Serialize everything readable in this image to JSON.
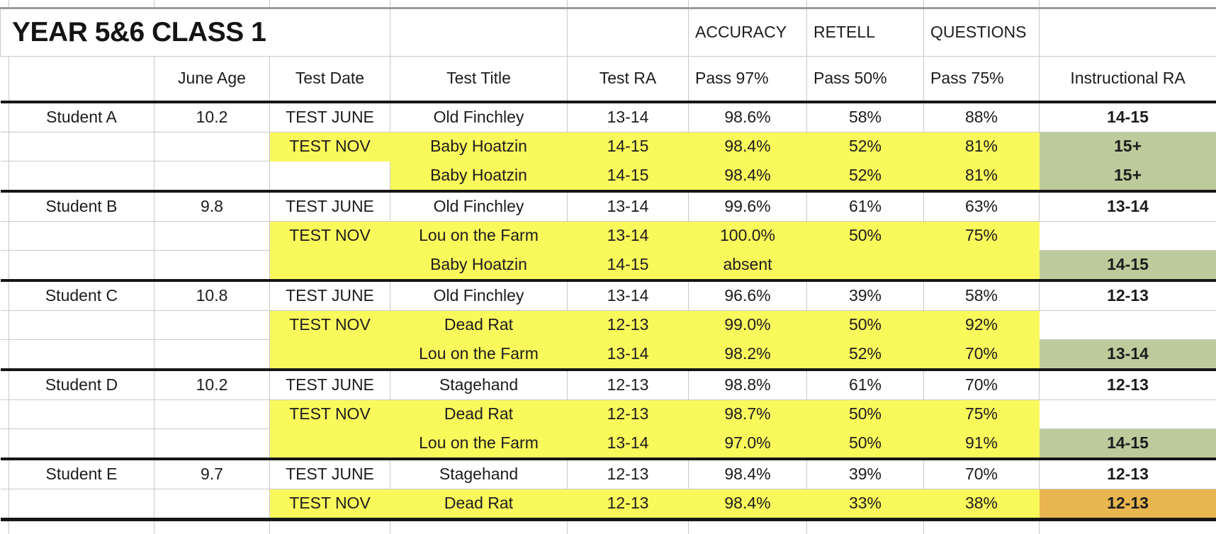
{
  "title": "YEAR 5&6 CLASS 1",
  "category_headers": {
    "accuracy": "ACCURACY",
    "retell": "RETELL",
    "questions": "QUESTIONS"
  },
  "column_headers": [
    "",
    "June Age",
    "Test Date",
    "Test Title",
    "Test RA",
    "Pass 97%",
    "Pass 50%",
    "Pass 75%",
    "Instructional RA"
  ],
  "colors": {
    "highlight_yellow": "#faf95c",
    "instructional_green": "#bdcb9c",
    "instructional_orange": "#e9b54f",
    "grid_line": "#c9c9c9",
    "divider_black": "#161616"
  },
  "rows": [
    {
      "student": "Student A",
      "june_age": "10.2",
      "test_date": "TEST JUNE",
      "test_title": "Old Finchley",
      "test_ra": "13-14",
      "pass97": "98.6%",
      "pass50": "58%",
      "pass75": "88%",
      "instructional_ra": "14-15",
      "row_highlight": "none",
      "instructional_ra_fill": "none",
      "group_start": true
    },
    {
      "student": "",
      "june_age": "",
      "test_date": "TEST NOV",
      "test_title": "Baby Hoatzin",
      "test_ra": "14-15",
      "pass97": "98.4%",
      "pass50": "52%",
      "pass75": "81%",
      "instructional_ra": "15+",
      "row_highlight": "from_test_date",
      "instructional_ra_fill": "green",
      "group_start": false
    },
    {
      "student": "",
      "june_age": "",
      "test_date": "",
      "test_title": "Baby Hoatzin",
      "test_ra": "14-15",
      "pass97": "98.4%",
      "pass50": "52%",
      "pass75": "81%",
      "instructional_ra": "15+",
      "row_highlight": "from_test_title",
      "instructional_ra_fill": "green",
      "group_start": false
    },
    {
      "student": "Student B",
      "june_age": "9.8",
      "test_date": "TEST JUNE",
      "test_title": "Old Finchley",
      "test_ra": "13-14",
      "pass97": "99.6%",
      "pass50": "61%",
      "pass75": "63%",
      "instructional_ra": "13-14",
      "row_highlight": "none",
      "instructional_ra_fill": "none",
      "group_start": true
    },
    {
      "student": "",
      "june_age": "",
      "test_date": "TEST NOV",
      "test_title": "Lou on the Farm",
      "test_ra": "13-14",
      "pass97": "100.0%",
      "pass50": "50%",
      "pass75": "75%",
      "instructional_ra": "",
      "row_highlight": "from_test_date",
      "instructional_ra_fill": "none",
      "group_start": false
    },
    {
      "student": "",
      "june_age": "",
      "test_date": "",
      "test_title": "Baby Hoatzin",
      "test_ra": "14-15",
      "pass97": "absent",
      "pass50": "",
      "pass75": "",
      "instructional_ra": "14-15",
      "row_highlight": "from_test_date",
      "instructional_ra_fill": "green",
      "group_start": false
    },
    {
      "student": "Student C",
      "june_age": "10.8",
      "test_date": "TEST JUNE",
      "test_title": "Old Finchley",
      "test_ra": "13-14",
      "pass97": "96.6%",
      "pass50": "39%",
      "pass75": "58%",
      "instructional_ra": "12-13",
      "row_highlight": "none",
      "instructional_ra_fill": "none",
      "group_start": true
    },
    {
      "student": "",
      "june_age": "",
      "test_date": "TEST NOV",
      "test_title": "Dead Rat",
      "test_ra": "12-13",
      "pass97": "99.0%",
      "pass50": "50%",
      "pass75": "92%",
      "instructional_ra": "",
      "row_highlight": "from_test_date",
      "instructional_ra_fill": "none",
      "group_start": false
    },
    {
      "student": "",
      "june_age": "",
      "test_date": "",
      "test_title": "Lou on the Farm",
      "test_ra": "13-14",
      "pass97": "98.2%",
      "pass50": "52%",
      "pass75": "70%",
      "instructional_ra": "13-14",
      "row_highlight": "from_test_date",
      "instructional_ra_fill": "green",
      "group_start": false
    },
    {
      "student": "Student D",
      "june_age": "10.2",
      "test_date": "TEST JUNE",
      "test_title": "Stagehand",
      "test_ra": "12-13",
      "pass97": "98.8%",
      "pass50": "61%",
      "pass75": "70%",
      "instructional_ra": "12-13",
      "row_highlight": "none",
      "instructional_ra_fill": "none",
      "group_start": true
    },
    {
      "student": "",
      "june_age": "",
      "test_date": "TEST NOV",
      "test_title": "Dead Rat",
      "test_ra": "12-13",
      "pass97": "98.7%",
      "pass50": "50%",
      "pass75": "75%",
      "instructional_ra": "",
      "row_highlight": "from_test_date",
      "instructional_ra_fill": "none",
      "group_start": false
    },
    {
      "student": "",
      "june_age": "",
      "test_date": "",
      "test_title": "Lou on the Farm",
      "test_ra": "13-14",
      "pass97": "97.0%",
      "pass50": "50%",
      "pass75": "91%",
      "instructional_ra": "14-15",
      "row_highlight": "from_test_date",
      "instructional_ra_fill": "green",
      "group_start": false
    },
    {
      "student": "Student E",
      "june_age": "9.7",
      "test_date": "TEST JUNE",
      "test_title": "Stagehand",
      "test_ra": "12-13",
      "pass97": "98.4%",
      "pass50": "39%",
      "pass75": "70%",
      "instructional_ra": "12-13",
      "row_highlight": "none",
      "instructional_ra_fill": "none",
      "group_start": true
    },
    {
      "student": "",
      "june_age": "",
      "test_date": "TEST NOV",
      "test_title": "Dead Rat",
      "test_ra": "12-13",
      "pass97": "98.4%",
      "pass50": "33%",
      "pass75": "38%",
      "instructional_ra": "12-13",
      "row_highlight": "from_test_date",
      "instructional_ra_fill": "orange",
      "group_start": false
    }
  ]
}
